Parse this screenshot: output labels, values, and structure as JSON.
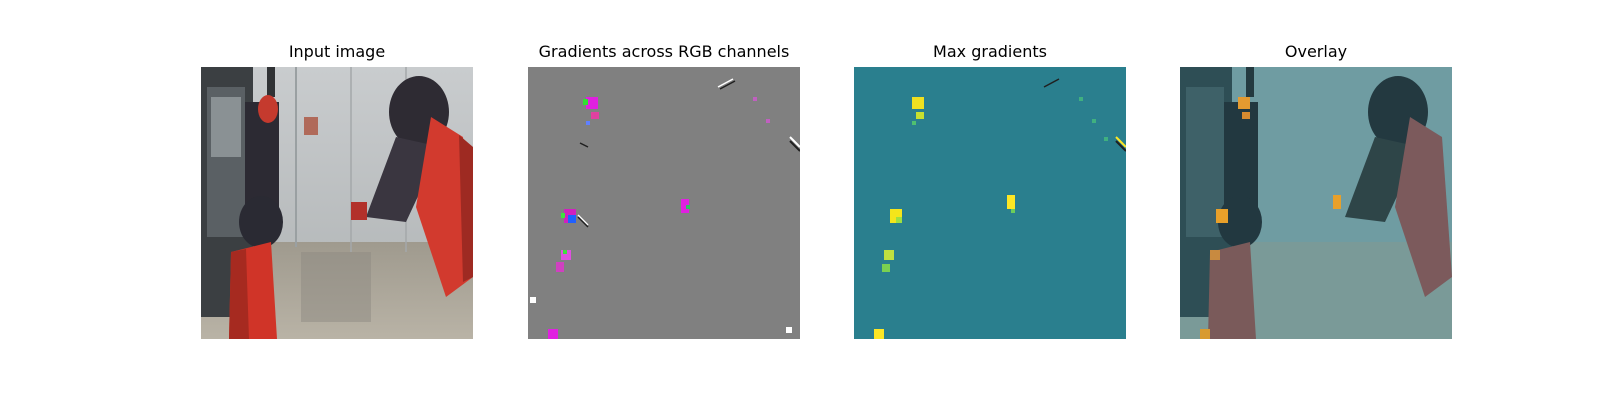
{
  "figure": {
    "panels": [
      {
        "title": "Input image"
      },
      {
        "title": "Gradients across RGB channels"
      },
      {
        "title": "Max gradients"
      },
      {
        "title": "Overlay"
      }
    ]
  }
}
